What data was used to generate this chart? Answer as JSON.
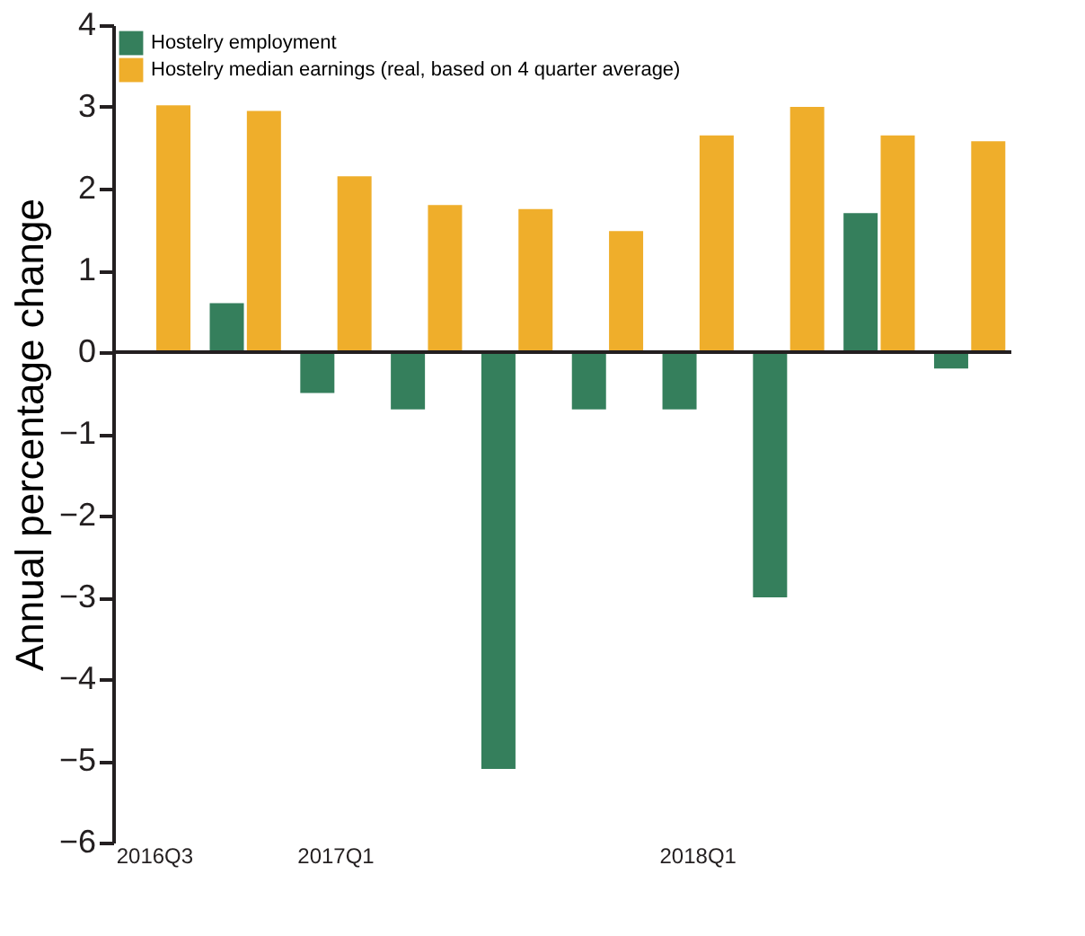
{
  "chart_data": {
    "type": "bar",
    "ylabel": "Annual percentage change",
    "categories": [
      "2016Q3",
      null,
      "2017Q1",
      null,
      null,
      null,
      "2018Q1",
      null,
      null,
      null
    ],
    "series": [
      {
        "name": "Hostelry employment",
        "color": "#357f5c",
        "values": [
          0.02,
          0.6,
          -0.5,
          -0.7,
          -5.1,
          -0.7,
          -0.7,
          -3.0,
          1.7,
          -0.2
        ]
      },
      {
        "name": "Hostelry median earnings (real, based on 4 quarter average)",
        "color": "#efae2b",
        "values": [
          3.02,
          2.95,
          2.15,
          1.8,
          1.75,
          1.48,
          2.65,
          3.0,
          2.65,
          2.58
        ]
      }
    ],
    "ylim": [
      -6,
      4
    ],
    "yticks": [
      -6,
      -5,
      -4,
      -3,
      -2,
      -1,
      0,
      1,
      2,
      3,
      4
    ],
    "ref_lines": [
      {
        "axis": "y",
        "value": 0,
        "color": "#231f20"
      }
    ],
    "grid": false,
    "legend": "top left"
  }
}
